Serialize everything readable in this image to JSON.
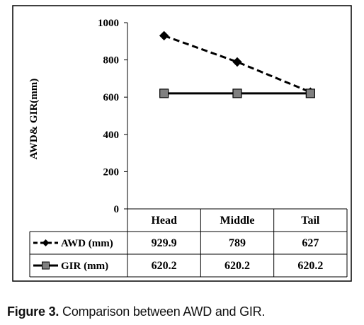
{
  "chart_data": {
    "type": "line",
    "categories": [
      "Head",
      "Middle",
      "Tail"
    ],
    "series": [
      {
        "name": "AWD (mm)",
        "values": [
          929.9,
          789,
          627
        ],
        "labels": [
          "929.9",
          "789",
          "627"
        ],
        "style": "dashed",
        "marker": "diamond",
        "color": "#000000"
      },
      {
        "name": "GIR (mm)",
        "values": [
          620.2,
          620.2,
          620.2
        ],
        "labels": [
          "620.2",
          "620.2",
          "620.2"
        ],
        "style": "solid",
        "marker": "square",
        "color": "#000000",
        "marker_fill": "#808080"
      }
    ],
    "ylabel": "AWD& GIR(mm)",
    "ylim": [
      0,
      1000
    ],
    "yticks": [
      "0",
      "200",
      "400",
      "600",
      "800",
      "1000"
    ],
    "grid": false,
    "legend": "data-table"
  },
  "caption": {
    "prefix": "Figure 3.",
    "text": " Comparison between AWD and GIR."
  }
}
